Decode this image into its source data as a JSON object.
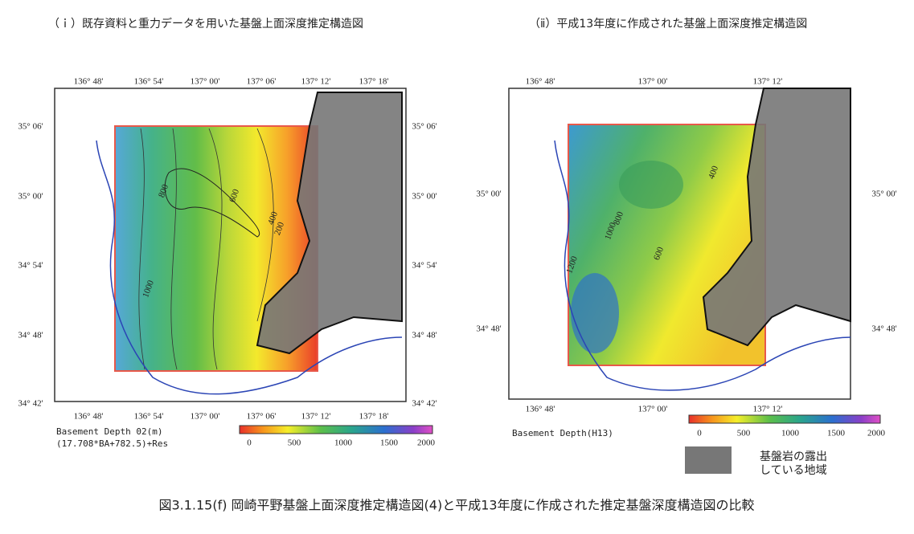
{
  "panels": [
    {
      "title": "（ｉ）既存資料と重力データを用いた基盤上面深度推定構造図",
      "lon_ticks": [
        "136° 48'",
        "136° 54'",
        "137° 00'",
        "137° 06'",
        "137° 12'",
        "137° 18'"
      ],
      "lat_ticks": [
        "35° 06'",
        "35° 00'",
        "34° 54'",
        "34° 48'",
        "34° 42'"
      ],
      "caption": [
        "Basement Depth 02(m)",
        "(17.708*BA+782.5)+Res"
      ],
      "colorbar_ticks": [
        0,
        500,
        1000,
        1500,
        2000
      ],
      "contour_labels": [
        "800",
        "600",
        "400",
        "200",
        "1000"
      ]
    },
    {
      "title": "（ⅱ）平成13年度に作成された基盤上面深度推定構造図",
      "lon_ticks": [
        "136° 48'",
        "137° 00'",
        "137° 12'"
      ],
      "lat_ticks": [
        "35° 00'",
        "34° 48'"
      ],
      "caption": [
        "Basement Depth(H13)"
      ],
      "colorbar_ticks": [
        0,
        500,
        1000,
        1500,
        2000
      ],
      "contour_labels": [
        "400",
        "800",
        "1000",
        "600",
        "1200"
      ]
    }
  ],
  "legend": [
    "基盤岩の露出",
    "している地域"
  ],
  "figure_caption": "図3.1.15(f)  岡崎平野基盤上面深度推定構造図(4)と平成13年度に作成された推定基盤深度構造図の比較"
}
